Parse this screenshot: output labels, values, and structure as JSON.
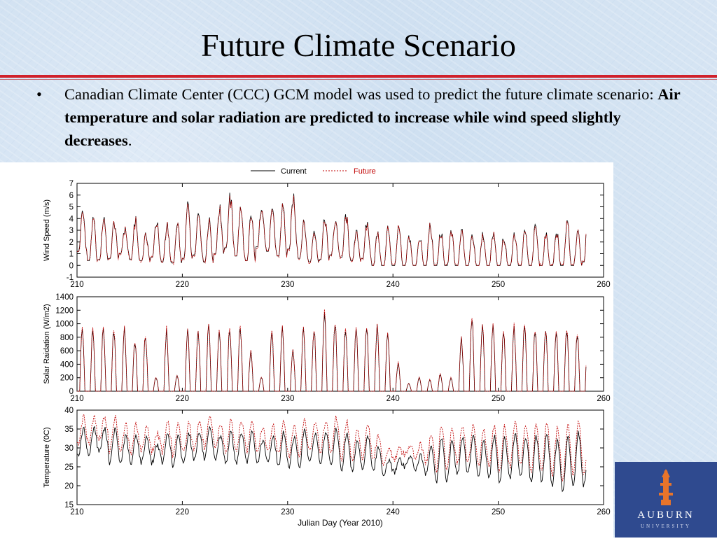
{
  "slide": {
    "title": "Future Climate Scenario",
    "bullet": {
      "marker": "•",
      "text_plain": "Canadian Climate Center (CCC) GCM model was used to predict the future climate scenario: ",
      "text_bold": "Air temperature and solar radiation are predicted to increase while wind speed slightly decreases",
      "text_end": "."
    }
  },
  "colors": {
    "current": "#000000",
    "future": "#c00000",
    "rule": "#d0202a",
    "logo_bg": "#2f4a8f"
  },
  "logo": {
    "name": "AUBURN",
    "sub": "UNIVERSITY",
    "icon": "auburn-tower-icon"
  },
  "chart_data": [
    {
      "type": "line",
      "ylabel": "Wind Speed (m/s)",
      "xlim": [
        210,
        260
      ],
      "ylim": [
        -1,
        7
      ],
      "x_ticks": [
        210,
        220,
        230,
        240,
        250,
        260
      ],
      "y_ticks": [
        -1,
        0,
        1,
        2,
        3,
        4,
        5,
        6,
        7
      ],
      "x_range_data": [
        210,
        258.4
      ],
      "legend": {
        "position": "top-center",
        "entries": [
          {
            "name": "Current",
            "style": "solid"
          },
          {
            "name": "Future",
            "style": "dotted"
          }
        ]
      },
      "series": [
        {
          "name": "Current",
          "daily_peak": [
            4.7,
            4.1,
            4.4,
            3.9,
            3.3,
            4.2,
            2.8,
            4.0,
            3.7,
            3.6,
            5.5,
            4.8,
            4.1,
            5.2,
            6.2,
            5.0,
            4.5,
            5.6,
            4.8,
            5.3,
            6.2,
            3.9,
            3.3,
            4.3,
            4.1,
            4.5,
            3.0,
            3.8,
            2.9,
            3.4,
            3.4,
            2.6,
            2.6,
            3.7,
            3.0,
            3.0,
            3.1,
            2.8,
            3.0,
            3.1,
            2.6,
            2.9,
            3.0,
            3.5,
            2.8,
            3.0,
            3.8,
            3.0,
            5.2
          ],
          "daily_min": [
            1.2,
            0.4,
            0.5,
            0.6,
            1.0,
            0.5,
            0.4,
            0.7,
            0.3,
            0.2,
            0.6,
            0.9,
            0.3,
            1.0,
            1.5,
            0.8,
            0.4,
            1.6,
            1.2,
            0.8,
            1.4,
            0.6,
            0.3,
            0.5,
            0.9,
            0.7,
            0.4,
            0.6,
            0.0,
            0.0,
            0.0,
            0.0,
            0.0,
            0.0,
            0.0,
            0.0,
            0.0,
            0.0,
            0.0,
            0.0,
            0.0,
            0.0,
            0.0,
            0.0,
            0.0,
            0.0,
            0.0,
            0.0,
            0.3
          ]
        },
        {
          "name": "Future",
          "daily_scale": 0.97
        }
      ]
    },
    {
      "type": "line",
      "ylabel": "Solar Raidation (W/m2)",
      "xlim": [
        210,
        260
      ],
      "ylim": [
        0,
        1400
      ],
      "x_ticks": [
        210,
        220,
        230,
        240,
        250,
        260
      ],
      "y_ticks": [
        0,
        200,
        400,
        600,
        800,
        1000,
        1200,
        1400
      ],
      "x_range_data": [
        210,
        258.4
      ],
      "series": [
        {
          "name": "Current",
          "daily_peak": [
            1000,
            950,
            990,
            950,
            940,
            760,
            870,
            220,
            910,
            230,
            940,
            920,
            980,
            960,
            980,
            980,
            600,
            220,
            900,
            980,
            650,
            1000,
            960,
            1200,
            1060,
            930,
            920,
            950,
            980,
            910,
            430,
            120,
            200,
            170,
            260,
            200,
            800,
            1110,
            970,
            980,
            930,
            960,
            990,
            930,
            950,
            930,
            930,
            890,
            850
          ]
        },
        {
          "name": "Future",
          "daily_scale": 1.03
        }
      ]
    },
    {
      "type": "line",
      "ylabel": "Temperature (0C)",
      "xlabel": "Julian Day (Year 2010)",
      "xlim": [
        210,
        260
      ],
      "ylim": [
        15,
        40
      ],
      "x_ticks": [
        210,
        220,
        230,
        240,
        250,
        260
      ],
      "y_ticks": [
        15,
        20,
        25,
        30,
        35,
        40
      ],
      "x_range_data": [
        210,
        258.4
      ],
      "series": [
        {
          "name": "Current",
          "daily_max": [
            35,
            35.5,
            35,
            35,
            33,
            33.5,
            33,
            31,
            34,
            33,
            34,
            34,
            35,
            33,
            34,
            34,
            34,
            32,
            33,
            34,
            33,
            35,
            34,
            34,
            35,
            34,
            32,
            33,
            30,
            27,
            27,
            28,
            28,
            30,
            33,
            32,
            33,
            33,
            32,
            33,
            33,
            34,
            33,
            33,
            34,
            32,
            33,
            34,
            32
          ],
          "daily_min": [
            28,
            28,
            29,
            26,
            26,
            25.5,
            26,
            26,
            26,
            25,
            26,
            27,
            27,
            27,
            26,
            26,
            26,
            26,
            26,
            25,
            25,
            25,
            26,
            26,
            25,
            24,
            24,
            24.5,
            24,
            23,
            23.5,
            25,
            24,
            23,
            21,
            21,
            23,
            23,
            22,
            22,
            21,
            22,
            22,
            21,
            21,
            20,
            18,
            20,
            20
          ]
        },
        {
          "name": "Future",
          "daily_offset": 3.0
        }
      ]
    }
  ]
}
